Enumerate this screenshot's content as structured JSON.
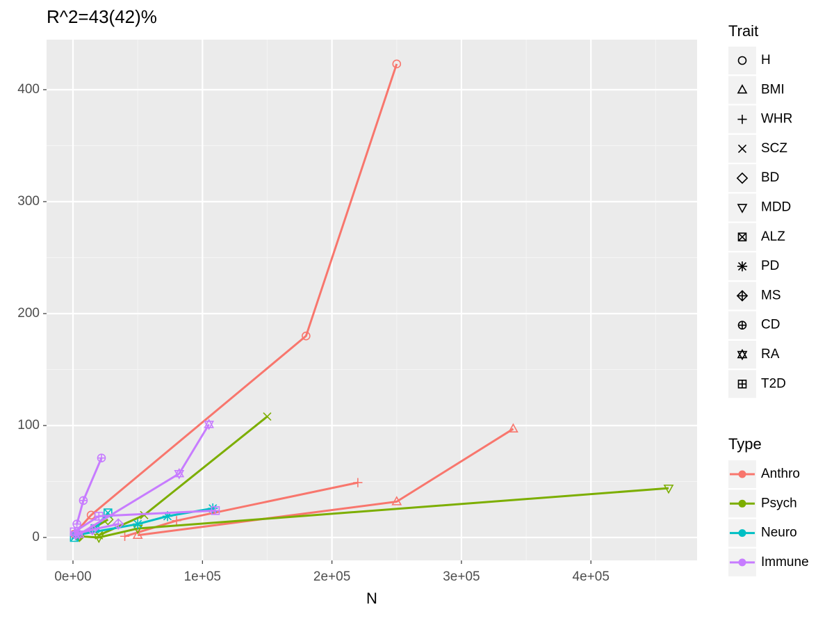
{
  "chart_data": {
    "type": "line",
    "title": "R^2=43(42)%",
    "x_label": "N",
    "xlim": [
      -20400,
      482000
    ],
    "ylim": [
      -20.5,
      444.7
    ],
    "xticks": [
      {
        "value": 0,
        "label": "0e+00"
      },
      {
        "value": 100000,
        "label": "1e+05"
      },
      {
        "value": 200000,
        "label": "2e+05"
      },
      {
        "value": 300000,
        "label": "3e+05"
      },
      {
        "value": 400000,
        "label": "4e+05"
      }
    ],
    "yticks": [
      0,
      100,
      200,
      300,
      400
    ],
    "grid": true,
    "legend_titles": {
      "shape": "Trait",
      "color": "Type"
    },
    "groups": [
      {
        "name": "Anthro",
        "color": "#F8766D"
      },
      {
        "name": "Psych",
        "color": "#7CAE00"
      },
      {
        "name": "Neuro",
        "color": "#00BFC4"
      },
      {
        "name": "Immune",
        "color": "#C77CFF"
      }
    ],
    "series": [
      {
        "name": "H",
        "group": "Anthro",
        "shape": "circle",
        "x": [
          1000,
          14000,
          180000,
          250000
        ],
        "values": [
          3,
          20,
          180,
          423
        ]
      },
      {
        "name": "BMI",
        "group": "Anthro",
        "shape": "triangle",
        "x": [
          50000,
          250000,
          340000
        ],
        "values": [
          2,
          32,
          97
        ]
      },
      {
        "name": "WHR",
        "group": "Anthro",
        "shape": "plus",
        "x": [
          40000,
          80000,
          220000
        ],
        "values": [
          1,
          15,
          49
        ]
      },
      {
        "name": "SCZ",
        "group": "Psych",
        "shape": "cross",
        "x": [
          20000,
          55000,
          150000
        ],
        "values": [
          2,
          20,
          108
        ]
      },
      {
        "name": "BD",
        "group": "Psych",
        "shape": "diamond",
        "x": [
          5000,
          27000
        ],
        "values": [
          1,
          16
        ]
      },
      {
        "name": "MDD",
        "group": "Psych",
        "shape": "triangle-down",
        "x": [
          5000,
          20000,
          50000,
          460000
        ],
        "values": [
          1,
          0,
          8,
          44
        ]
      },
      {
        "name": "ALZ",
        "group": "Neuro",
        "shape": "square-cross",
        "x": [
          1000,
          17000,
          27000
        ],
        "values": [
          0,
          8,
          22
        ]
      },
      {
        "name": "PD",
        "group": "Neuro",
        "shape": "asterisk",
        "x": [
          2000,
          50000,
          73000,
          108000
        ],
        "values": [
          2,
          12,
          19,
          26
        ]
      },
      {
        "name": "MS",
        "group": "Immune",
        "shape": "diamond-plus",
        "x": [
          2000,
          15000,
          35000
        ],
        "values": [
          3,
          7,
          12
        ]
      },
      {
        "name": "CD",
        "group": "Immune",
        "shape": "circle-plus",
        "x": [
          3000,
          8000,
          22000
        ],
        "values": [
          12,
          33,
          71
        ]
      },
      {
        "name": "RA",
        "group": "Immune",
        "shape": "star-of-david",
        "x": [
          5000,
          82000,
          105000
        ],
        "values": [
          3,
          57,
          101
        ]
      },
      {
        "name": "T2D",
        "group": "Immune",
        "shape": "square-plus",
        "x": [
          1000,
          20000,
          110000
        ],
        "values": [
          5,
          19,
          24
        ]
      }
    ]
  }
}
